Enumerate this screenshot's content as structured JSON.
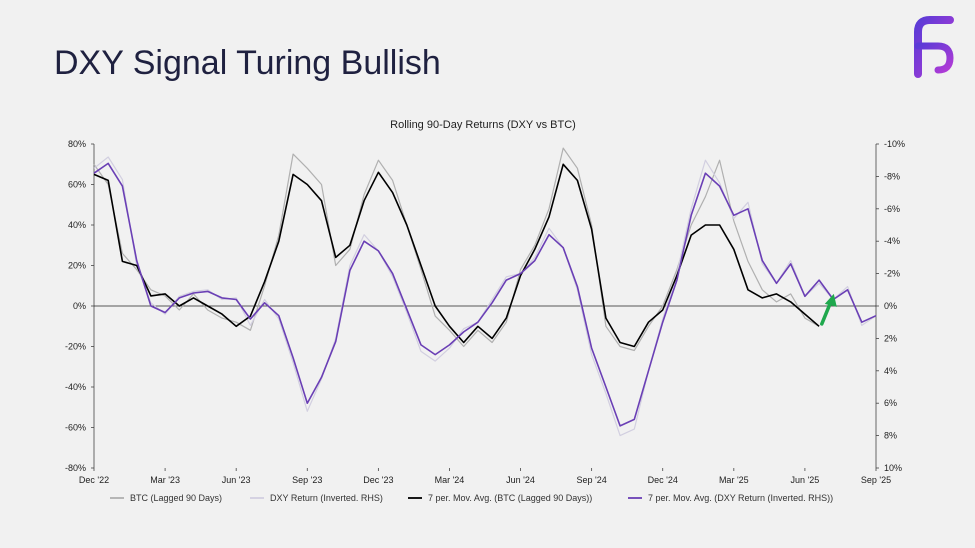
{
  "slide": {
    "title": "DXY Signal Turing Bullish"
  },
  "logo": {
    "icon": "fs-logo-icon",
    "color_start": "#5b3bd6",
    "color_end": "#b23bd6"
  },
  "chart_data": {
    "type": "line",
    "title": "Rolling 90-Day Returns (DXY vs BTC)",
    "x_ticks": [
      "Dec '22",
      "Mar '23",
      "Jun '23",
      "Sep '23",
      "Dec '23",
      "Mar '24",
      "Jun '24",
      "Sep '24",
      "Dec '24",
      "Mar '25",
      "Jun '25",
      "Sep '25"
    ],
    "y_left": {
      "ticks": [
        "80%",
        "60%",
        "40%",
        "20%",
        "0%",
        "-20%",
        "-40%",
        "-60%",
        "-80%"
      ],
      "range": [
        -80,
        80
      ]
    },
    "y_right": {
      "ticks": [
        "-10%",
        "-8%",
        "-6%",
        "-4%",
        "-2%",
        "0%",
        "2%",
        "4%",
        "6%",
        "8%",
        "10%"
      ],
      "range": [
        -10,
        10
      ],
      "inverted": true
    },
    "x_range": [
      0,
      11
    ],
    "series": [
      {
        "name": "BTC (Lagged 90 Days)",
        "axis": "left",
        "color": "#b0b0b0",
        "width": 1.2,
        "x": [
          0,
          0.2,
          0.4,
          0.6,
          0.8,
          1,
          1.2,
          1.4,
          1.6,
          1.8,
          2,
          2.2,
          2.4,
          2.6,
          2.8,
          3,
          3.2,
          3.4,
          3.6,
          3.8,
          4,
          4.2,
          4.4,
          4.6,
          4.8,
          5,
          5.2,
          5.4,
          5.6,
          5.8,
          6,
          6.2,
          6.4,
          6.6,
          6.8,
          7,
          7.2,
          7.4,
          7.6,
          7.8,
          8,
          8.2,
          8.4,
          8.6,
          8.8,
          9,
          9.2,
          9.4,
          9.6,
          9.8,
          10,
          10.2
        ],
        "values": [
          70,
          60,
          26,
          18,
          8,
          5,
          -2,
          6,
          -2,
          -6,
          -8,
          -12,
          10,
          35,
          75,
          68,
          60,
          20,
          28,
          55,
          72,
          62,
          40,
          18,
          -5,
          -12,
          -20,
          -12,
          -18,
          -8,
          18,
          30,
          48,
          78,
          68,
          40,
          -10,
          -20,
          -22,
          -10,
          0,
          18,
          40,
          54,
          72,
          42,
          22,
          8,
          2,
          6,
          -6,
          -10
        ]
      },
      {
        "name": "DXY Return (Inverted. RHS)",
        "axis": "right",
        "color": "#d2cfe0",
        "width": 1.2,
        "x": [
          0,
          0.2,
          0.4,
          0.6,
          0.8,
          1,
          1.2,
          1.4,
          1.6,
          1.8,
          2,
          2.2,
          2.4,
          2.6,
          2.8,
          3,
          3.2,
          3.4,
          3.6,
          3.8,
          4,
          4.2,
          4.4,
          4.6,
          4.8,
          5,
          5.2,
          5.4,
          5.6,
          5.8,
          6,
          6.2,
          6.4,
          6.6,
          6.8,
          7,
          7.2,
          7.4,
          7.6,
          7.8,
          8,
          8.2,
          8.4,
          8.6,
          8.8,
          9,
          9.2,
          9.4,
          9.6,
          9.8,
          10,
          10.2,
          10.4,
          10.6,
          10.8,
          11
        ],
        "values": [
          -8.5,
          -9.2,
          -7.8,
          -2.5,
          -0.2,
          0.5,
          -0.6,
          -0.9,
          -1.0,
          -0.4,
          -0.5,
          1.2,
          -0.4,
          0.8,
          3.5,
          6.5,
          4.5,
          2.0,
          -2.5,
          -4.4,
          -3.4,
          -1.8,
          0.4,
          2.8,
          3.4,
          2.6,
          1.4,
          1.0,
          -0.4,
          -1.8,
          -2.0,
          -3.0,
          -4.8,
          -3.6,
          -1.0,
          3.0,
          5.4,
          8.0,
          7.6,
          4.0,
          0.8,
          -2.0,
          -6.0,
          -9.0,
          -7.6,
          -5.4,
          -6.4,
          -2.6,
          -1.4,
          -2.8,
          -0.6,
          -1.4,
          -0.4,
          -1.2,
          1.2,
          0.6
        ]
      },
      {
        "name": "7 per. Mov. Avg. (BTC (Lagged 90 Days))",
        "axis": "left",
        "color": "#000000",
        "width": 1.6,
        "x": [
          0,
          0.2,
          0.4,
          0.6,
          0.8,
          1,
          1.2,
          1.4,
          1.6,
          1.8,
          2,
          2.2,
          2.4,
          2.6,
          2.8,
          3,
          3.2,
          3.4,
          3.6,
          3.8,
          4,
          4.2,
          4.4,
          4.6,
          4.8,
          5,
          5.2,
          5.4,
          5.6,
          5.8,
          6,
          6.2,
          6.4,
          6.6,
          6.8,
          7,
          7.2,
          7.4,
          7.6,
          7.8,
          8,
          8.2,
          8.4,
          8.6,
          8.8,
          9,
          9.2,
          9.4,
          9.6,
          9.8,
          10,
          10.2
        ],
        "values": [
          65,
          62,
          22,
          20,
          5,
          6,
          0,
          4,
          0,
          -4,
          -10,
          -5,
          12,
          32,
          65,
          60,
          52,
          24,
          30,
          52,
          66,
          56,
          40,
          20,
          0,
          -10,
          -18,
          -10,
          -16,
          -6,
          15,
          28,
          44,
          70,
          62,
          38,
          -6,
          -18,
          -20,
          -8,
          -2,
          15,
          35,
          40,
          40,
          28,
          8,
          4,
          6,
          2,
          -4,
          -10
        ]
      },
      {
        "name": "7 per. Mov. Avg. (DXY Return (Inverted. RHS))",
        "axis": "right",
        "color": "#6a3fb5",
        "width": 1.6,
        "x": [
          0,
          0.2,
          0.4,
          0.6,
          0.8,
          1,
          1.2,
          1.4,
          1.6,
          1.8,
          2,
          2.2,
          2.4,
          2.6,
          2.8,
          3,
          3.2,
          3.4,
          3.6,
          3.8,
          4,
          4.2,
          4.4,
          4.6,
          4.8,
          5,
          5.2,
          5.4,
          5.6,
          5.8,
          6,
          6.2,
          6.4,
          6.6,
          6.8,
          7,
          7.2,
          7.4,
          7.6,
          7.8,
          8,
          8.2,
          8.4,
          8.6,
          8.8,
          9,
          9.2,
          9.4,
          9.6,
          9.8,
          10,
          10.2,
          10.4,
          10.6,
          10.8,
          11
        ],
        "values": [
          -8.2,
          -8.8,
          -7.4,
          -2.8,
          0.0,
          0.4,
          -0.5,
          -0.8,
          -0.9,
          -0.5,
          -0.4,
          0.8,
          -0.2,
          0.6,
          3.2,
          6.0,
          4.4,
          2.2,
          -2.2,
          -4.0,
          -3.4,
          -2.0,
          0.2,
          2.4,
          3.0,
          2.4,
          1.6,
          1.0,
          -0.2,
          -1.6,
          -2.0,
          -2.8,
          -4.4,
          -3.6,
          -1.2,
          2.6,
          5.0,
          7.4,
          7.0,
          4.0,
          1.0,
          -1.6,
          -5.6,
          -8.2,
          -7.4,
          -5.6,
          -6.0,
          -2.8,
          -1.4,
          -2.6,
          -0.6,
          -1.6,
          -0.4,
          -1.0,
          1.0,
          0.6
        ]
      }
    ],
    "annotation": {
      "type": "arrow",
      "color": "#1fa84d",
      "x": 10.35,
      "y_left": 4
    }
  }
}
